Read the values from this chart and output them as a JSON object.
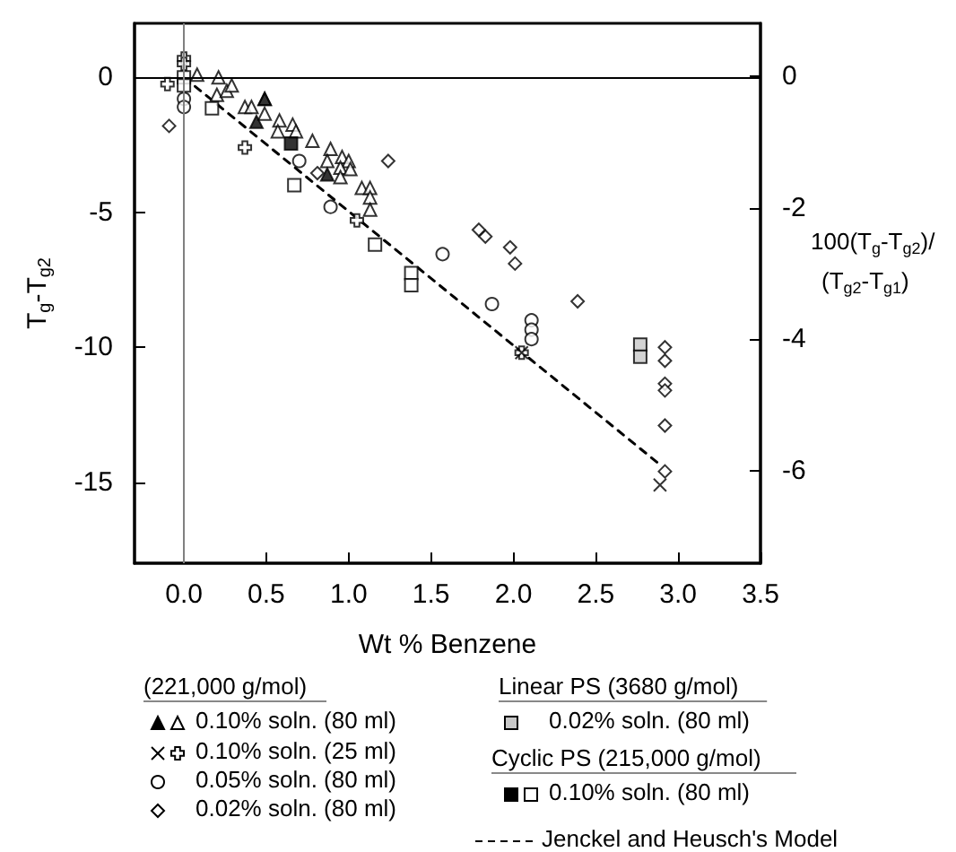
{
  "chart_data": {
    "type": "scatter",
    "xlabel": "Wt % Benzene",
    "ylabel": "T$_{g}$-T$_{g2}$",
    "y2label": "100(T$_{g}$-T$_{g2}$)/(T$_{g2}$-T$_{g1}$)",
    "xlim": [
      -0.3,
      3.5
    ],
    "xticks": [
      {
        "value": 0,
        "label": "0.0"
      },
      {
        "value": 0.5,
        "label": "0.5"
      },
      {
        "value": 1,
        "label": "1.0"
      },
      {
        "value": 1.5,
        "label": "1.5"
      },
      {
        "value": 2,
        "label": "2.0"
      },
      {
        "value": 2.5,
        "label": "2.5"
      },
      {
        "value": 3,
        "label": "3.0"
      },
      {
        "value": 3.5,
        "label": "3.5"
      }
    ],
    "ylim": [
      -18,
      2
    ],
    "yticks": [
      0,
      -5,
      -10,
      -15
    ],
    "y2lim": [
      -7.4,
      0.8
    ],
    "y2ticks": [
      0,
      -2,
      -4,
      -6
    ],
    "grid": false,
    "legend": "bottom",
    "annotations": [
      "(221,000 g/mol)",
      "Linear PS (3680 g/mol)",
      "Cyclic PS (215,000 g/mol)"
    ],
    "ref_lines": [
      {
        "axis": "y",
        "value": 0,
        "color": "#000000"
      },
      {
        "axis": "x",
        "value": 0,
        "color": "#808080"
      }
    ],
    "series": [
      {
        "name": "0.10% soln. (80 ml)",
        "color": "#ffffff",
        "marker": "triangle",
        "x": [
          0.08,
          0.21,
          0.2,
          0.26,
          0.29,
          0.37,
          0.41,
          0.49,
          0.49,
          0.58,
          0.57,
          0.66,
          0.68,
          0.78,
          0.89,
          0.87,
          0.96,
          1.0,
          0.95,
          1.01,
          0.95,
          1.08,
          1.13,
          1.13,
          1.13
        ],
        "values": [
          0.1,
          0.0,
          -0.65,
          -0.5,
          -0.3,
          -1.1,
          -1.1,
          -0.8,
          -1.35,
          -1.6,
          -2.0,
          -1.75,
          -2.0,
          -2.35,
          -2.65,
          -3.1,
          -2.95,
          -3.1,
          -3.35,
          -3.4,
          -3.7,
          -4.1,
          -4.1,
          -4.45,
          -4.9
        ]
      },
      {
        "color": "#000000",
        "marker": "triangle",
        "x": [
          0.49,
          0.44,
          0.87
        ],
        "values": [
          -0.8,
          -1.65,
          -3.6
        ]
      },
      {
        "name": "0.10% soln. (25 ml)",
        "color": "#ffffff",
        "marker": "plus",
        "x": [
          -0.1,
          0,
          0,
          0.37,
          1.05,
          2.05
        ],
        "values": [
          -0.25,
          0.7,
          0.5,
          -2.6,
          -5.3,
          -10.2
        ]
      },
      {
        "color": "#000000",
        "marker": "cross",
        "x": [
          2.05,
          2.89
        ],
        "values": [
          -10.2,
          -15.1
        ]
      },
      {
        "name": "0.05% soln. (80 ml)",
        "color": "#ffffff",
        "marker": "circle",
        "x": [
          0,
          0,
          0.7,
          0.89,
          1.57,
          1.87,
          2.11,
          2.11,
          2.11
        ],
        "values": [
          -0.8,
          -1.1,
          -3.1,
          -4.8,
          -6.55,
          -8.4,
          -9.0,
          -9.35,
          -9.7
        ]
      },
      {
        "name": "0.02% soln. (80 ml)",
        "color": "#ffffff",
        "marker": "diamond",
        "x": [
          -0.09,
          0.81,
          1.24,
          1.79,
          1.83,
          1.98,
          2.01,
          2.39,
          2.92,
          2.92,
          2.92,
          2.92,
          2.92,
          2.92
        ],
        "values": [
          -1.8,
          -3.55,
          -3.1,
          -5.65,
          -5.9,
          -6.3,
          -6.9,
          -8.3,
          -10.0,
          -10.5,
          -11.35,
          -11.6,
          -12.9,
          -14.6
        ]
      },
      {
        "name": "0.02% soln. (80 ml)",
        "color": "#c8c8c8",
        "marker": "square",
        "x": [
          2.77,
          2.77
        ],
        "values": [
          -9.9,
          -10.35
        ]
      },
      {
        "name": "0.10% soln. (80 ml)",
        "color": "#ffffff",
        "marker": "square",
        "x": [
          0,
          0,
          0.17,
          0.67,
          1.16,
          1.38,
          1.38
        ],
        "values": [
          0.0,
          -0.3,
          -1.15,
          -4.0,
          -6.2,
          -7.25,
          -7.7
        ]
      },
      {
        "color": "#000000",
        "marker": "square",
        "x": [
          0.65
        ],
        "values": [
          -2.45
        ]
      },
      {
        "name": "Jenckel and Heusch's Model",
        "type": "line",
        "color": "#000000",
        "marker": "none",
        "line_style": "dashed",
        "x": [
          0,
          2.9
        ],
        "values": [
          0,
          -14.4
        ]
      }
    ]
  }
}
